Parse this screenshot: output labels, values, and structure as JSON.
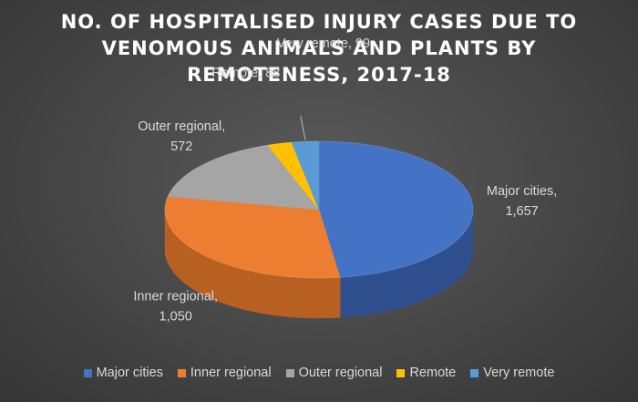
{
  "chart_data": {
    "type": "pie",
    "title_lines": [
      "NO. OF HOSPITALISED INJURY CASES DUE TO",
      "VENOMOUS ANIMALS AND PLANTS BY",
      "REMOTENESS, 2017-18"
    ],
    "categories": [
      "Major cities",
      "Inner regional",
      "Outer regional",
      "Remote",
      "Very remote"
    ],
    "values": [
      1657,
      1050,
      572,
      88,
      99
    ],
    "data_labels": [
      [
        "Major cities,",
        "1,657"
      ],
      [
        "Inner regional,",
        "1,050"
      ],
      [
        "Outer regional,",
        "572"
      ],
      [
        "Remote, 88"
      ],
      [
        "Very remote, 99"
      ]
    ],
    "colors": [
      "#4472C4",
      "#ED7D31",
      "#A5A5A5",
      "#FFC000",
      "#5B9BD5"
    ],
    "side_colors": [
      "#2F4F8E",
      "#B85F22",
      "#7C7C7C",
      "#C49200",
      "#3F73A3"
    ],
    "style": "3d",
    "legend_position": "bottom"
  }
}
